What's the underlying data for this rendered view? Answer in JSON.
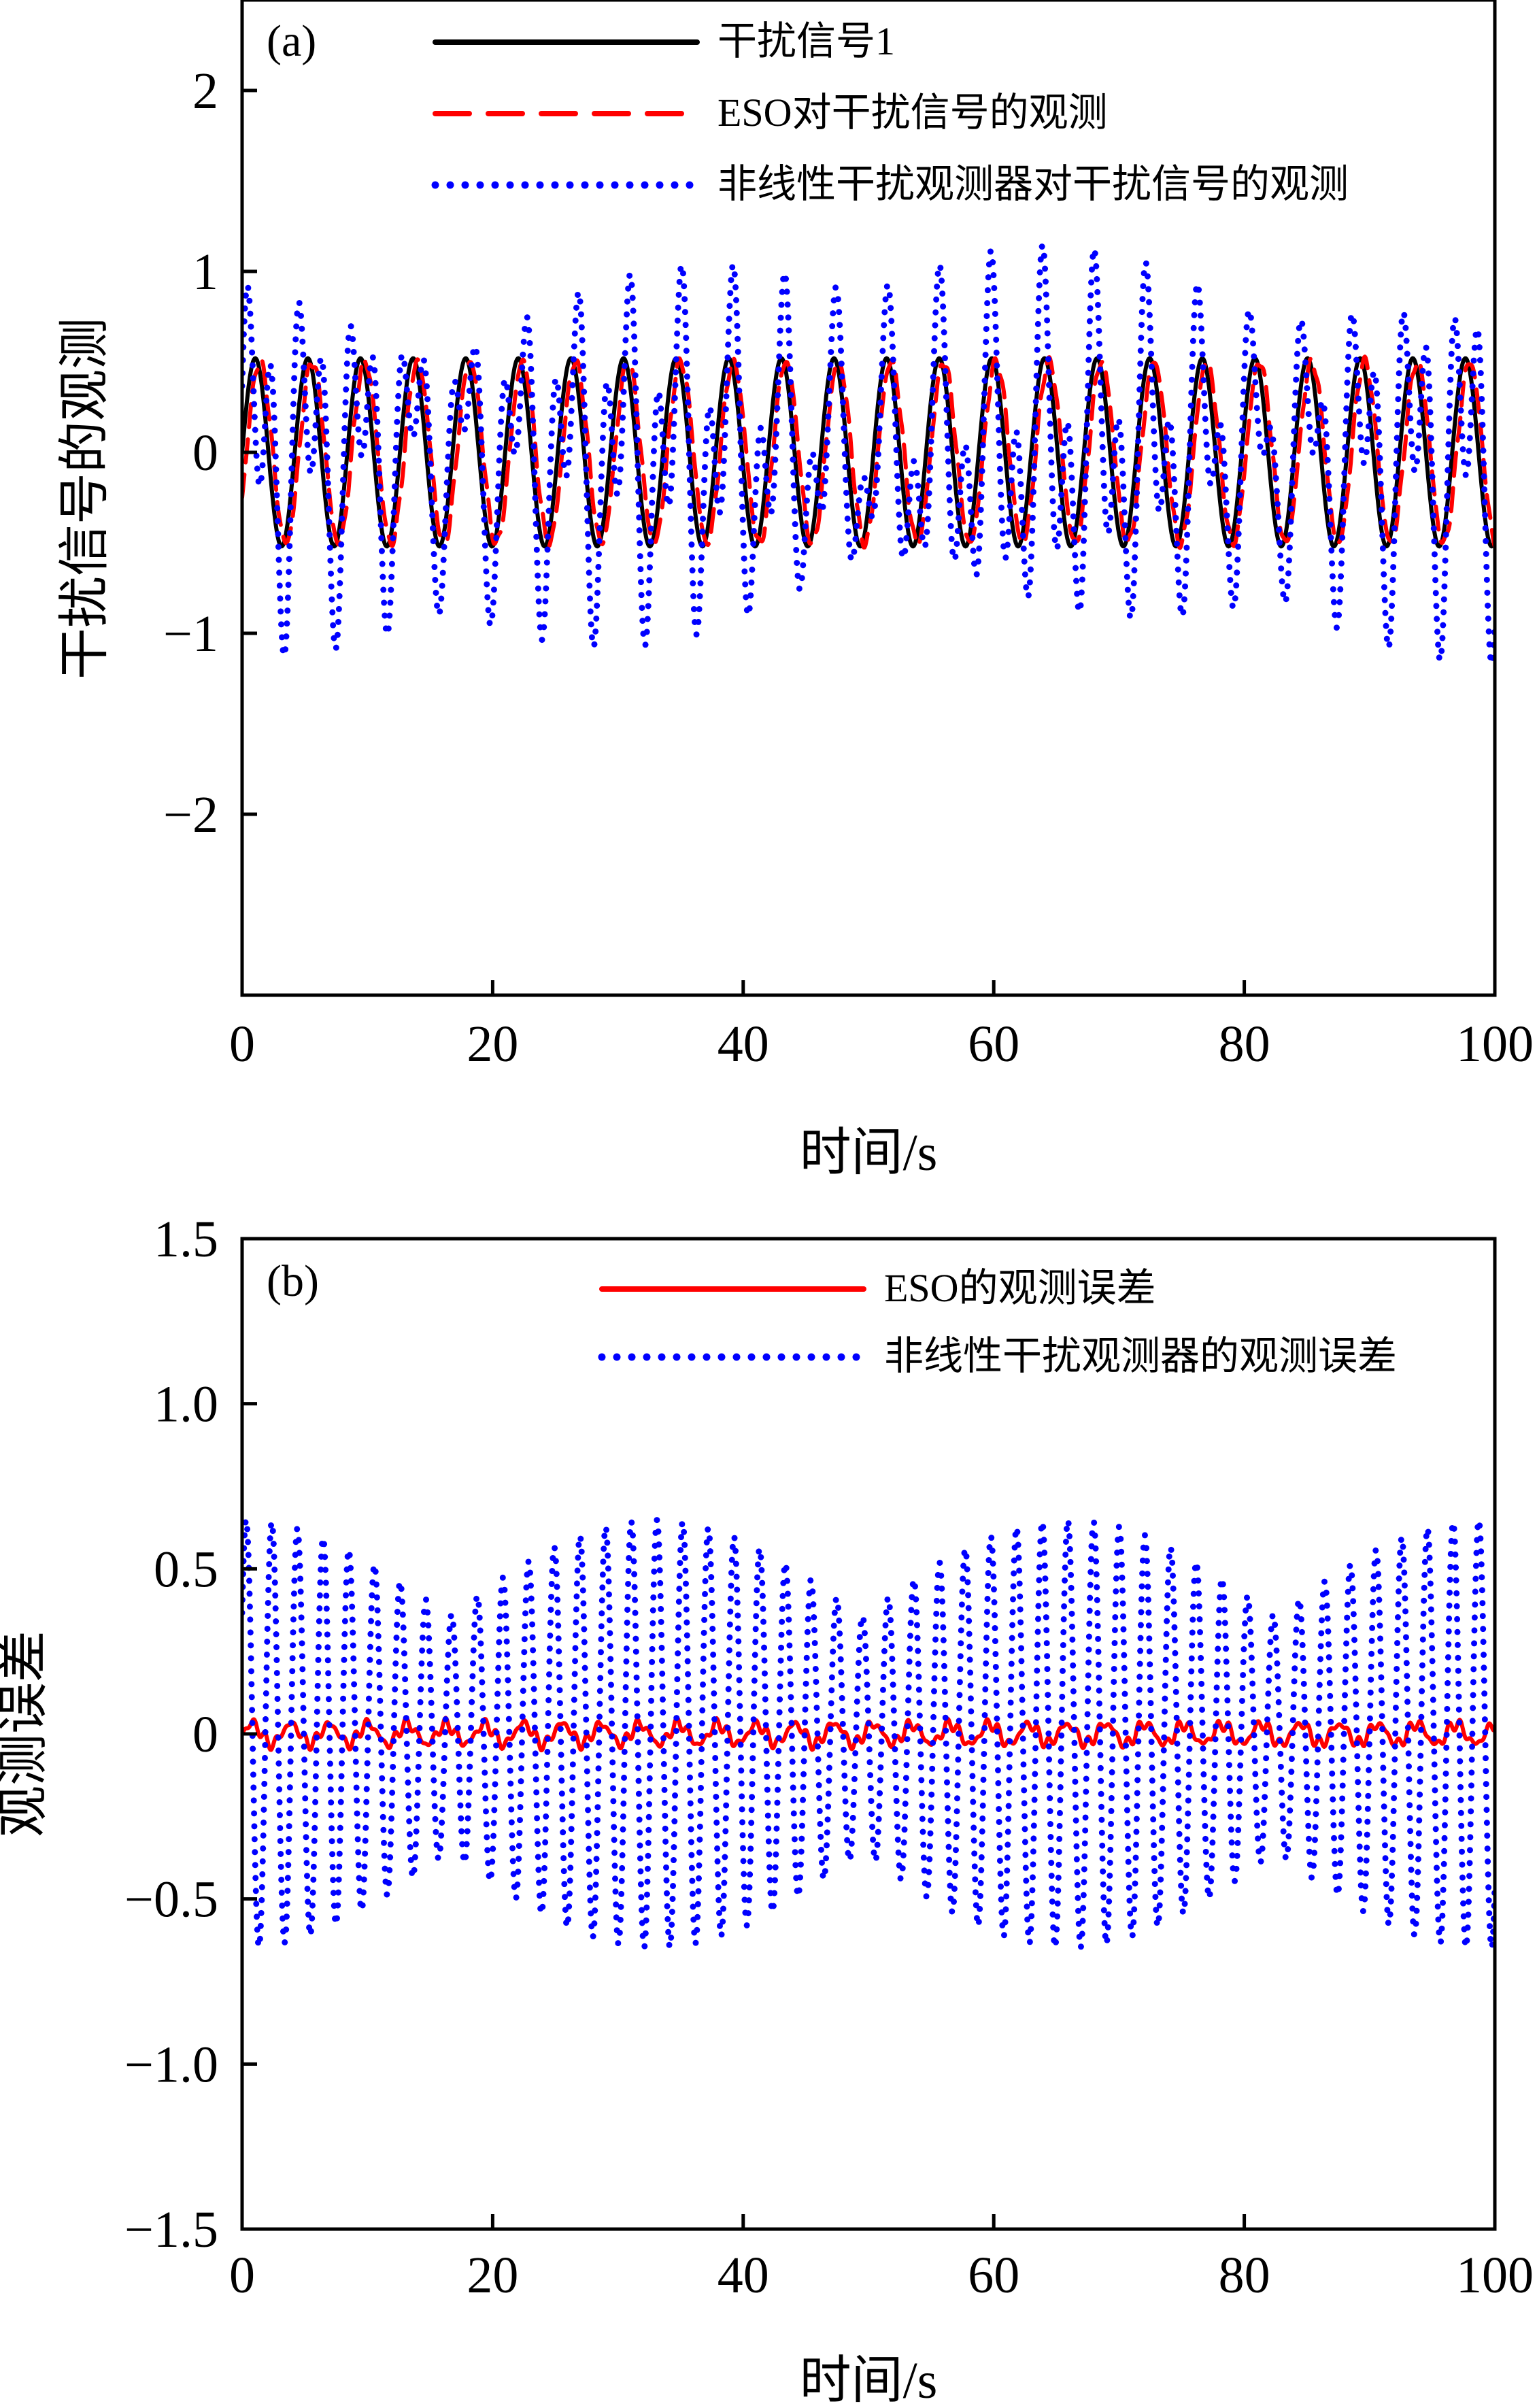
{
  "chart_data": [
    {
      "type": "line",
      "panel_label": "(a)",
      "xlabel": "时间/s",
      "ylabel": "干扰信号的观测",
      "xlim": [
        0,
        100
      ],
      "ylim": [
        -3,
        2.5
      ],
      "xticks": [
        "0",
        "20",
        "40",
        "60",
        "80",
        "100"
      ],
      "yticks": [
        "−2",
        "−1",
        "0",
        "1",
        "2"
      ],
      "ytick_values": [
        -2,
        -1,
        0,
        1,
        2
      ],
      "xtick_values": [
        0,
        20,
        40,
        60,
        80,
        100
      ],
      "legend_position": "top-right",
      "grid": false,
      "series": [
        {
          "name": "干扰信号1",
          "color": "#000000",
          "style": "solid",
          "kind": "sine",
          "amplitude": 0.52,
          "period": 4.2,
          "phase_delay": 0,
          "noise": 0,
          "noise_period": 0.8
        },
        {
          "name": "ESO对干扰信号的观测",
          "color": "#ff0000",
          "style": "dashed",
          "kind": "sine",
          "amplitude": 0.5,
          "period": 4.2,
          "phase_delay": 0.35,
          "noise": 0.03,
          "noise_period": 0.8
        },
        {
          "name": "非线性干扰观测器对干扰信号的观测",
          "color": "#0000ff",
          "style": "dotted",
          "kind": "sine_plus_error",
          "amplitude": 0.52,
          "period": 4.2,
          "phase_delay": 0,
          "error_amplitude": 0.65,
          "error_period": 2.05,
          "error_mod_period": 33,
          "noise": 0,
          "noise_period": 0.8
        }
      ]
    },
    {
      "type": "line",
      "panel_label": "(b)",
      "xlabel": "时间/s",
      "ylabel": "观测误差",
      "xlim": [
        0,
        100
      ],
      "ylim": [
        -1.5,
        1.5
      ],
      "xticks": [
        "0",
        "20",
        "40",
        "60",
        "80",
        "100"
      ],
      "yticks": [
        "−1.5",
        "−1.0",
        "−0.5",
        "0",
        "0.5",
        "1.0",
        "1.5"
      ],
      "ytick_values": [
        -1.5,
        -1.0,
        -0.5,
        0,
        0.5,
        1.0,
        1.5
      ],
      "xtick_values": [
        0,
        20,
        40,
        60,
        80,
        100
      ],
      "legend_position": "top-right",
      "grid": false,
      "series": [
        {
          "name": "ESO的观测误差",
          "color": "#ff0000",
          "style": "solid",
          "kind": "small_error",
          "amplitude": 0.03,
          "period": 4.2,
          "noise": 0.02,
          "noise_period": 0.9
        },
        {
          "name": "非线性干扰观测器的观测误差",
          "color": "#0000ff",
          "style": "dotted",
          "kind": "error",
          "error_amplitude": 0.65,
          "error_period": 2.05,
          "error_mod_period": 33,
          "noise": 0,
          "noise_period": 0.8
        }
      ]
    }
  ]
}
